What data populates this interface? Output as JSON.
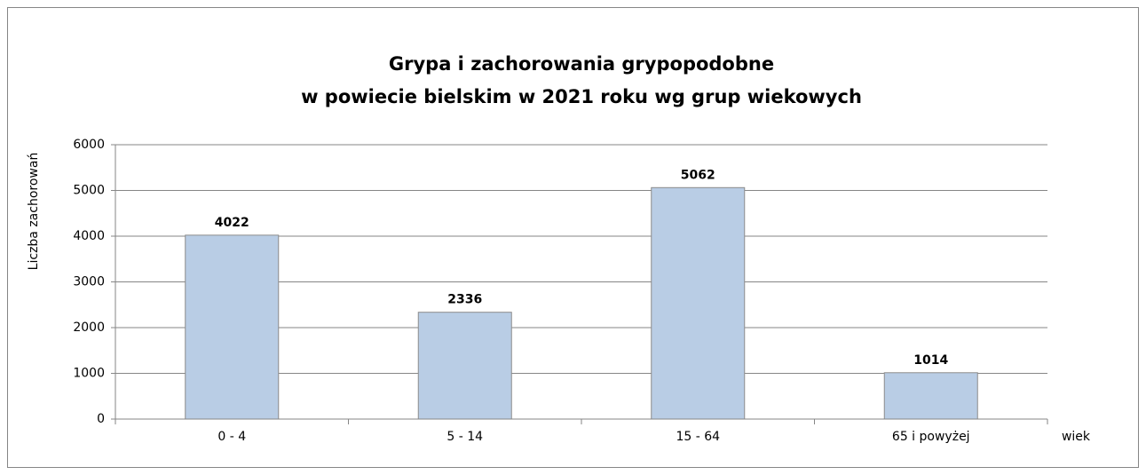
{
  "chart_data": {
    "type": "bar",
    "title": [
      "Grypa i zachorowania grypopodobne",
      "w powiecie bielskim w 2021 roku wg grup wiekowych"
    ],
    "y_label": "Liczba zachorowań",
    "x_label": "wiek",
    "categories": [
      "0 - 4",
      "5 - 14",
      "15 - 64",
      "65 i powyżej"
    ],
    "values": [
      4022,
      2336,
      5062,
      1014
    ],
    "color": "#b9cde5",
    "ylim": [
      0,
      6000
    ],
    "yticks": [
      0,
      1000,
      2000,
      3000,
      4000,
      5000,
      6000
    ],
    "grid": true
  }
}
